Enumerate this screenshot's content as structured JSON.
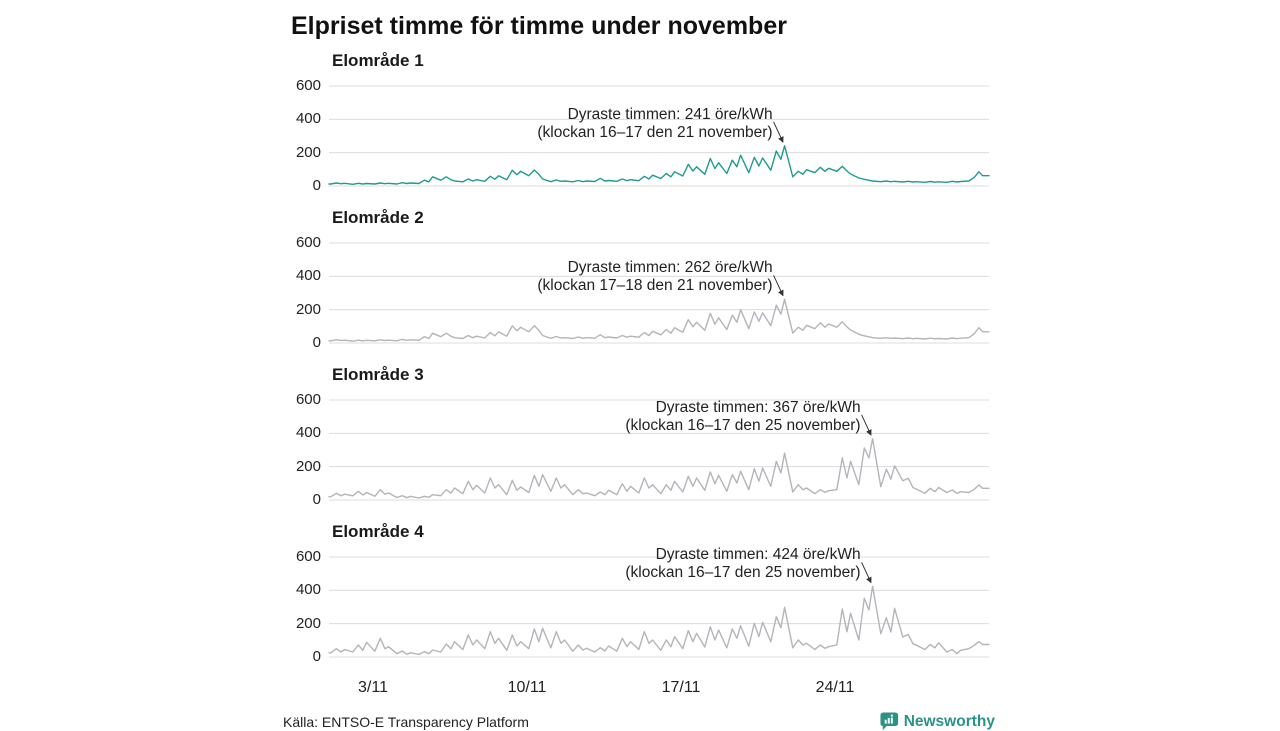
{
  "title": "Elpriset timme för timme under november",
  "axis": {
    "y_ticks": [
      "600",
      "400",
      "200",
      "0"
    ],
    "x_ticks": [
      "3/11",
      "10/11",
      "17/11",
      "24/11"
    ],
    "ylim": [
      0,
      600
    ],
    "unit": "öre/kWh",
    "grid": "horizontal only"
  },
  "footer": {
    "source": "Källa: ENTSO-E Transparency Platform",
    "brand": "Newsworthy"
  },
  "colors": {
    "accent_line": "#1f9c8f",
    "gray_line": "#b4b4bb",
    "grid": "#dcdcdc",
    "annotation_text": "#222222",
    "brand": "#2a9286"
  },
  "chart_data": [
    {
      "type": "line",
      "label": "Elområde 1",
      "color": "#1f9c8f",
      "annotation_line1": "Dyraste timmen: 241 öre/kWh",
      "annotation_line2": "(klockan 16–17 den 21 november)",
      "peak": {
        "value": 241,
        "unit": "öre/kWh",
        "hours": "16–17",
        "date": "21 november"
      },
      "x_days": [
        1,
        30
      ],
      "sample_hours": [
        2,
        8,
        13,
        17
      ],
      "ylim": [
        0,
        600
      ],
      "values": [
        12,
        18,
        14,
        16,
        10,
        16,
        12,
        15,
        12,
        18,
        14,
        16,
        12,
        20,
        15,
        18,
        15,
        35,
        25,
        55,
        35,
        55,
        38,
        30,
        25,
        42,
        30,
        38,
        28,
        58,
        40,
        62,
        38,
        95,
        68,
        88,
        62,
        96,
        70,
        42,
        26,
        36,
        28,
        30,
        25,
        33,
        26,
        30,
        27,
        46,
        30,
        33,
        28,
        42,
        32,
        38,
        32,
        58,
        42,
        65,
        45,
        75,
        55,
        85,
        60,
        130,
        90,
        115,
        70,
        165,
        105,
        140,
        75,
        155,
        115,
        185,
        80,
        172,
        120,
        168,
        95,
        210,
        160,
        241,
        55,
        88,
        70,
        98,
        80,
        112,
        88,
        106,
        88,
        118,
        90,
        72,
        48,
        40,
        34,
        30,
        26,
        30,
        26,
        28,
        24,
        28,
        24,
        26,
        22,
        27,
        23,
        25,
        22,
        28,
        24,
        27,
        30,
        52,
        85,
        62
      ]
    },
    {
      "type": "line",
      "label": "Elområde 2",
      "color": "#b4b4bb",
      "annotation_line1": "Dyraste timmen: 262 öre/kWh",
      "annotation_line2": "(klockan 17–18 den 21 november)",
      "peak": {
        "value": 262,
        "unit": "öre/kWh",
        "hours": "17–18",
        "date": "21 november"
      },
      "x_days": [
        1,
        30
      ],
      "sample_hours": [
        2,
        8,
        13,
        17
      ],
      "ylim": [
        0,
        600
      ],
      "values": [
        13,
        19,
        15,
        17,
        11,
        17,
        13,
        16,
        13,
        19,
        15,
        17,
        13,
        22,
        16,
        19,
        16,
        38,
        27,
        59,
        38,
        59,
        41,
        32,
        27,
        45,
        32,
        41,
        30,
        63,
        43,
        67,
        41,
        103,
        73,
        95,
        67,
        104,
        76,
        45,
        28,
        39,
        30,
        32,
        27,
        36,
        28,
        32,
        29,
        50,
        32,
        36,
        30,
        45,
        35,
        41,
        35,
        63,
        45,
        70,
        49,
        81,
        59,
        92,
        65,
        140,
        97,
        124,
        76,
        178,
        113,
        151,
        81,
        167,
        124,
        200,
        86,
        186,
        130,
        181,
        103,
        227,
        173,
        262,
        59,
        95,
        76,
        106,
        86,
        121,
        95,
        114,
        95,
        127,
        97,
        78,
        52,
        43,
        37,
        32,
        28,
        32,
        28,
        30,
        26,
        30,
        26,
        28,
        24,
        29,
        25,
        27,
        24,
        30,
        26,
        29,
        32,
        56,
        92,
        67
      ]
    },
    {
      "type": "line",
      "label": "Elområde 3",
      "color": "#b4b4bb",
      "annotation_line1": "Dyraste timmen: 367 öre/kWh",
      "annotation_line2": "(klockan 16–17 den 25 november)",
      "peak": {
        "value": 367,
        "unit": "öre/kWh",
        "hours": "16–17",
        "date": "25 november"
      },
      "x_days": [
        1,
        30
      ],
      "sample_hours": [
        2,
        8,
        13,
        17
      ],
      "ylim": [
        0,
        600
      ],
      "values": [
        20,
        40,
        25,
        35,
        25,
        52,
        30,
        45,
        22,
        62,
        35,
        42,
        15,
        26,
        14,
        22,
        12,
        22,
        16,
        32,
        26,
        62,
        42,
        72,
        38,
        112,
        62,
        88,
        42,
        132,
        72,
        92,
        32,
        118,
        58,
        78,
        45,
        148,
        82,
        152,
        52,
        132,
        72,
        92,
        32,
        62,
        38,
        42,
        26,
        48,
        32,
        58,
        32,
        98,
        52,
        82,
        42,
        132,
        72,
        92,
        38,
        92,
        58,
        112,
        48,
        142,
        82,
        132,
        58,
        168,
        98,
        148,
        52,
        152,
        102,
        172,
        62,
        188,
        112,
        192,
        82,
        232,
        162,
        281,
        48,
        92,
        62,
        72,
        38,
        62,
        46,
        56,
        62,
        252,
        132,
        232,
        92,
        312,
        252,
        367,
        80,
        185,
        125,
        205,
        115,
        130,
        75,
        65,
        40,
        70,
        50,
        75,
        45,
        60,
        40,
        50,
        45,
        65,
        90,
        70
      ]
    },
    {
      "type": "line",
      "label": "Elområde 4",
      "color": "#b4b4bb",
      "annotation_line1": "Dyraste timmen: 424 öre/kWh",
      "annotation_line2": "(klockan 16–17 den 25 november)",
      "peak": {
        "value": 424,
        "unit": "öre/kWh",
        "hours": "16–17",
        "date": "25 november"
      },
      "x_days": [
        1,
        30
      ],
      "sample_hours": [
        2,
        8,
        13,
        17
      ],
      "ylim": [
        0,
        600
      ],
      "values": [
        25,
        50,
        30,
        45,
        30,
        72,
        40,
        88,
        35,
        112,
        50,
        62,
        20,
        36,
        16,
        26,
        15,
        32,
        20,
        42,
        30,
        78,
        50,
        92,
        45,
        132,
        72,
        102,
        50,
        152,
        82,
        112,
        40,
        132,
        66,
        92,
        50,
        168,
        92,
        172,
        55,
        152,
        82,
        102,
        35,
        72,
        42,
        52,
        30,
        56,
        36,
        66,
        35,
        112,
        62,
        92,
        45,
        152,
        82,
        102,
        40,
        102,
        62,
        122,
        50,
        158,
        92,
        142,
        60,
        182,
        102,
        162,
        55,
        168,
        112,
        188,
        65,
        202,
        122,
        208,
        92,
        242,
        175,
        298,
        55,
        102,
        72,
        82,
        45,
        72,
        52,
        62,
        72,
        288,
        152,
        262,
        102,
        352,
        282,
        424,
        140,
        235,
        150,
        292,
        120,
        135,
        80,
        70,
        45,
        75,
        55,
        85,
        30,
        45,
        20,
        40,
        50,
        70,
        92,
        75
      ]
    }
  ]
}
